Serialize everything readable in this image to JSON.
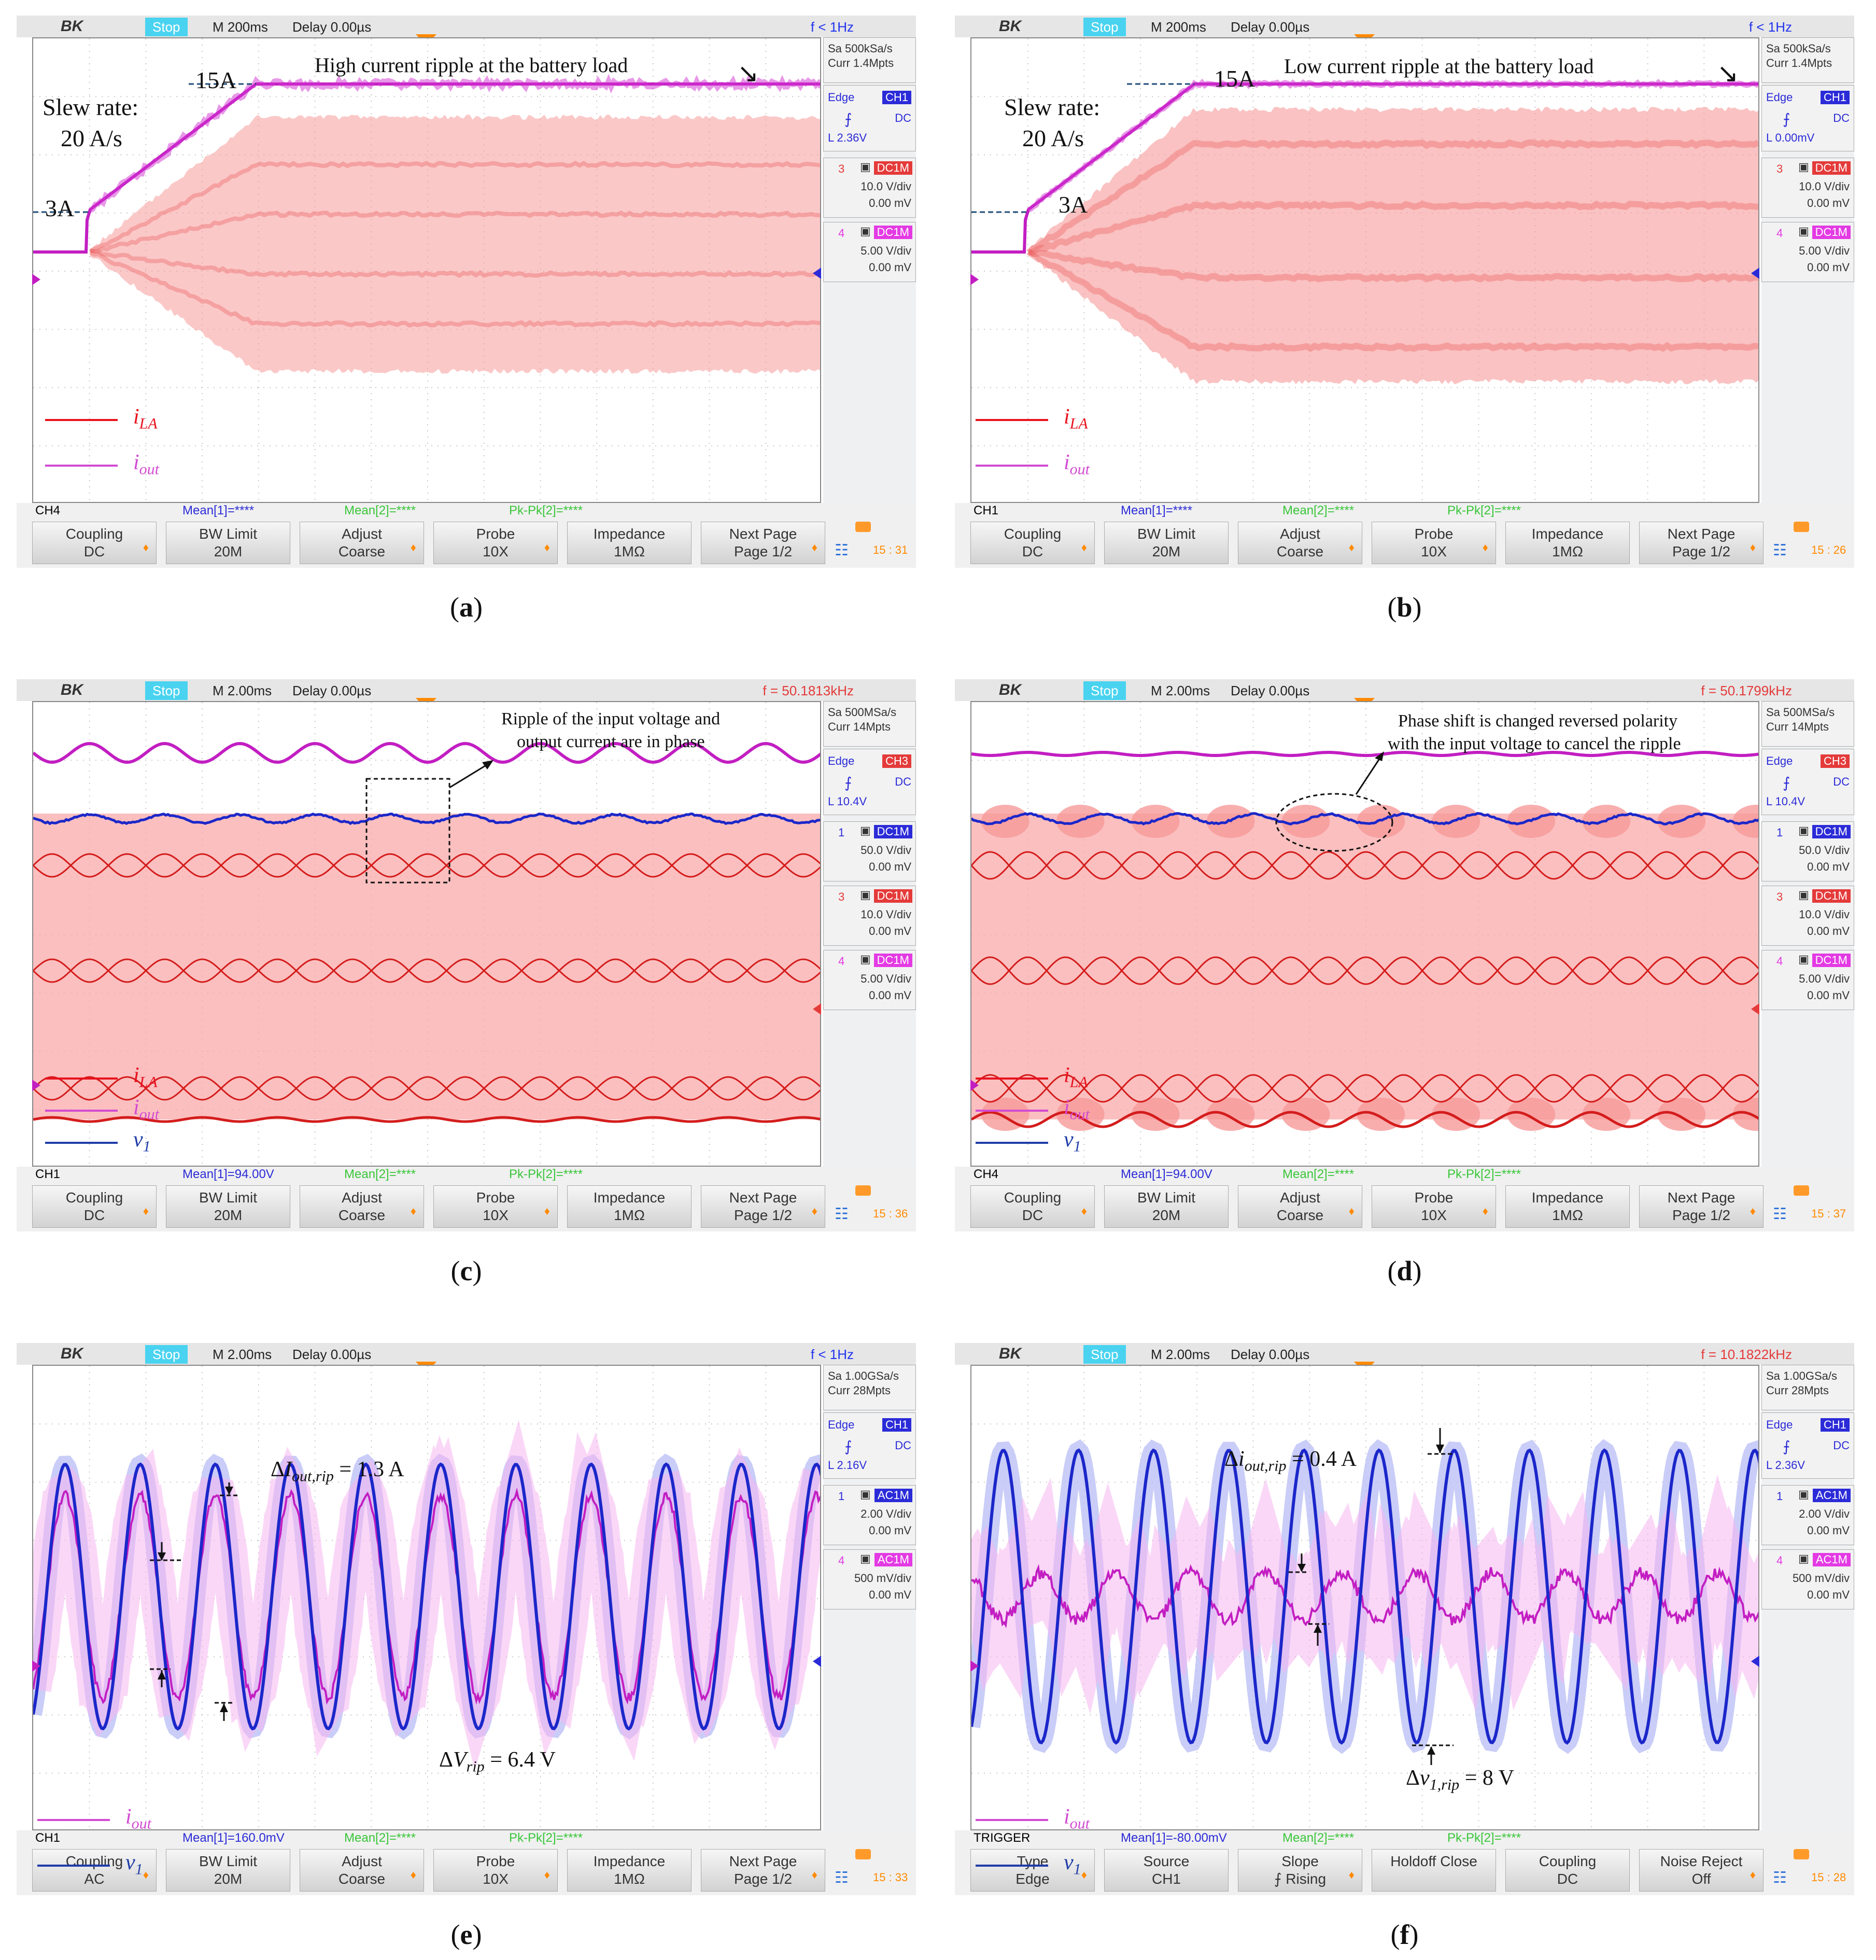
{
  "panels": [
    {
      "id": "a",
      "caption": "a",
      "topbar": {
        "brand": "BK",
        "state": "Stop",
        "timebase": "M 200ms",
        "delay": "Delay 0.00µs",
        "freq": "f < 1Hz",
        "freq_color": "blue"
      },
      "side": {
        "sa": "Sa 500kSa/s",
        "curr": "Curr 1.4Mpts",
        "trig_label": "Edge",
        "trig_ch": "CH1",
        "trig_coupling": "DC",
        "trig_level": "L  2.36V",
        "channels": [
          {
            "num": "3",
            "mode": "DC1M",
            "color": "#e43a3a",
            "vdiv": "10.0 V/div",
            "offset": "0.00 mV"
          },
          {
            "num": "4",
            "mode": "DC1M",
            "color": "#e33ae3",
            "vdiv": "5.00 V/div",
            "offset": "0.00 mV"
          }
        ]
      },
      "bottom": {
        "label": "CH4",
        "mean1": "Mean[1]=****",
        "mean2": "Mean[2]=****",
        "pkpk": "Pk-Pk[2]=****"
      },
      "softkeys": [
        [
          "Coupling",
          "DC"
        ],
        [
          "BW Limit",
          "20M"
        ],
        [
          "Adjust",
          "Coarse"
        ],
        [
          "Probe",
          "10X"
        ],
        [
          "Impedance",
          "1MΩ"
        ],
        [
          "Next Page",
          "Page 1/2"
        ]
      ],
      "clock": "15 : 31",
      "annotations": {
        "slew1": "Slew rate:",
        "slew2": "20 A/s",
        "low": "3A",
        "high": "15A",
        "note": "High current ripple at the battery load"
      },
      "legend": [
        {
          "sym": "i",
          "sub": "LA",
          "color": "#e8121e"
        },
        {
          "sym": "i",
          "sub": "out",
          "color": "#d24bd2"
        }
      ]
    },
    {
      "id": "b",
      "caption": "b",
      "topbar": {
        "brand": "BK",
        "state": "Stop",
        "timebase": "M 200ms",
        "delay": "Delay 0.00µs",
        "freq": "f < 1Hz",
        "freq_color": "blue"
      },
      "side": {
        "sa": "Sa 500kSa/s",
        "curr": "Curr 1.4Mpts",
        "trig_label": "Edge",
        "trig_ch": "CH1",
        "trig_coupling": "DC",
        "trig_level": "L  0.00mV",
        "channels": [
          {
            "num": "3",
            "mode": "DC1M",
            "color": "#e43a3a",
            "vdiv": "10.0 V/div",
            "offset": "0.00 mV"
          },
          {
            "num": "4",
            "mode": "DC1M",
            "color": "#e33ae3",
            "vdiv": "5.00 V/div",
            "offset": "0.00 mV"
          }
        ]
      },
      "bottom": {
        "label": "CH1",
        "mean1": "Mean[1]=****",
        "mean2": "Mean[2]=****",
        "pkpk": "Pk-Pk[2]=****"
      },
      "softkeys": [
        [
          "Coupling",
          "DC"
        ],
        [
          "BW Limit",
          "20M"
        ],
        [
          "Adjust",
          "Coarse"
        ],
        [
          "Probe",
          "10X"
        ],
        [
          "Impedance",
          "1MΩ"
        ],
        [
          "Next Page",
          "Page 1/2"
        ]
      ],
      "clock": "15 : 26",
      "annotations": {
        "slew1": "Slew rate:",
        "slew2": "20 A/s",
        "low": "3A",
        "high": "15A",
        "note": "Low current ripple at the battery load"
      },
      "legend": [
        {
          "sym": "i",
          "sub": "LA",
          "color": "#e8121e"
        },
        {
          "sym": "i",
          "sub": "out",
          "color": "#d24bd2"
        }
      ]
    },
    {
      "id": "c",
      "caption": "c",
      "topbar": {
        "brand": "BK",
        "state": "Stop",
        "timebase": "M 2.00ms",
        "delay": "Delay 0.00µs",
        "freq": "f = 50.1813kHz",
        "freq_color": "red"
      },
      "side": {
        "sa": "Sa 500MSa/s",
        "curr": "Curr 14Mpts",
        "trig_label": "Edge",
        "trig_ch": "CH3",
        "trig_coupling": "DC",
        "trig_level": "L  10.4V",
        "channels": [
          {
            "num": "1",
            "mode": "DC1M",
            "color": "#2b2bd8",
            "vdiv": "50.0 V/div",
            "offset": "0.00 mV"
          },
          {
            "num": "3",
            "mode": "DC1M",
            "color": "#e43a3a",
            "vdiv": "10.0 V/div",
            "offset": "0.00 mV"
          },
          {
            "num": "4",
            "mode": "DC1M",
            "color": "#e33ae3",
            "vdiv": "5.00 V/div",
            "offset": "0.00 mV"
          }
        ]
      },
      "bottom": {
        "label": "CH1",
        "mean1": "Mean[1]=94.00V",
        "mean2": "Mean[2]=****",
        "pkpk": "Pk-Pk[2]=****"
      },
      "softkeys": [
        [
          "Coupling",
          "DC"
        ],
        [
          "BW Limit",
          "20M"
        ],
        [
          "Adjust",
          "Coarse"
        ],
        [
          "Probe",
          "10X"
        ],
        [
          "Impedance",
          "1MΩ"
        ],
        [
          "Next Page",
          "Page 1/2"
        ]
      ],
      "clock": "15 : 36",
      "annotations": {
        "note1": "Ripple of the input voltage and",
        "note2": "output current are in phase"
      },
      "legend": [
        {
          "sym": "i",
          "sub": "LA",
          "color": "#e8121e"
        },
        {
          "sym": "i",
          "sub": "out",
          "color": "#d24bd2"
        },
        {
          "sym": "v",
          "sub": "1",
          "color": "#1f3da8"
        }
      ]
    },
    {
      "id": "d",
      "caption": "d",
      "topbar": {
        "brand": "BK",
        "state": "Stop",
        "timebase": "M 2.00ms",
        "delay": "Delay 0.00µs",
        "freq": "f = 50.1799kHz",
        "freq_color": "red"
      },
      "side": {
        "sa": "Sa 500MSa/s",
        "curr": "Curr 14Mpts",
        "trig_label": "Edge",
        "trig_ch": "CH3",
        "trig_coupling": "DC",
        "trig_level": "L  10.4V",
        "channels": [
          {
            "num": "1",
            "mode": "DC1M",
            "color": "#2b2bd8",
            "vdiv": "50.0 V/div",
            "offset": "0.00 mV"
          },
          {
            "num": "3",
            "mode": "DC1M",
            "color": "#e43a3a",
            "vdiv": "10.0 V/div",
            "offset": "0.00 mV"
          },
          {
            "num": "4",
            "mode": "DC1M",
            "color": "#e33ae3",
            "vdiv": "5.00 V/div",
            "offset": "0.00 mV"
          }
        ]
      },
      "bottom": {
        "label": "CH4",
        "mean1": "Mean[1]=94.00V",
        "mean2": "Mean[2]=****",
        "pkpk": "Pk-Pk[2]=****"
      },
      "softkeys": [
        [
          "Coupling",
          "DC"
        ],
        [
          "BW Limit",
          "20M"
        ],
        [
          "Adjust",
          "Coarse"
        ],
        [
          "Probe",
          "10X"
        ],
        [
          "Impedance",
          "1MΩ"
        ],
        [
          "Next Page",
          "Page 1/2"
        ]
      ],
      "clock": "15 : 37",
      "annotations": {
        "note1": "Phase shift is changed reversed polarity",
        "note2": "with the input voltage to cancel the ripple"
      },
      "legend": [
        {
          "sym": "i",
          "sub": "LA",
          "color": "#e8121e"
        },
        {
          "sym": "i",
          "sub": "out",
          "color": "#d24bd2"
        },
        {
          "sym": "v",
          "sub": "1",
          "color": "#1f3da8"
        }
      ]
    },
    {
      "id": "e",
      "caption": "e",
      "topbar": {
        "brand": "BK",
        "state": "Stop",
        "timebase": "M 2.00ms",
        "delay": "Delay 0.00µs",
        "freq": "f < 1Hz",
        "freq_color": "blue"
      },
      "side": {
        "sa": "Sa 1.00GSa/s",
        "curr": "Curr 28Mpts",
        "trig_label": "Edge",
        "trig_ch": "CH1",
        "trig_coupling": "DC",
        "trig_level": "L  2.16V",
        "channels": [
          {
            "num": "1",
            "mode": "AC1M",
            "color": "#2b2bd8",
            "vdiv": "2.00 V/div",
            "offset": "0.00 mV"
          },
          {
            "num": "4",
            "mode": "AC1M",
            "color": "#e33ae3",
            "vdiv": "500 mV/div",
            "offset": "0.00 mV"
          }
        ]
      },
      "bottom": {
        "label": "CH1",
        "mean1": "Mean[1]=160.0mV",
        "mean2": "Mean[2]=****",
        "pkpk": "Pk-Pk[2]=****"
      },
      "softkeys": [
        [
          "Coupling",
          "AC"
        ],
        [
          "BW Limit",
          "20M"
        ],
        [
          "Adjust",
          "Coarse"
        ],
        [
          "Probe",
          "10X"
        ],
        [
          "Impedance",
          "1MΩ"
        ],
        [
          "Next Page",
          "Page 1/2"
        ]
      ],
      "clock": "15 : 33",
      "annotations": {
        "di_pre": "Δ",
        "di_sym": "I",
        "di_sub": "out,rip",
        "di_val": " = 1.3 A",
        "dv_pre": "Δ",
        "dv_sym": "V",
        "dv_sub": "rip",
        "dv_val": " = 6.4 V"
      },
      "legend": [
        {
          "sym": "i",
          "sub": "out",
          "color": "#d24bd2"
        },
        {
          "sym": "v",
          "sub": "1",
          "color": "#1f3da8"
        }
      ]
    },
    {
      "id": "f",
      "caption": "f",
      "topbar": {
        "brand": "BK",
        "state": "Stop",
        "timebase": "M 2.00ms",
        "delay": "Delay 0.00µs",
        "freq": "f = 10.1822kHz",
        "freq_color": "red"
      },
      "side": {
        "sa": "Sa 1.00GSa/s",
        "curr": "Curr 28Mpts",
        "trig_label": "Edge",
        "trig_ch": "CH1",
        "trig_coupling": "DC",
        "trig_level": "L  2.36V",
        "channels": [
          {
            "num": "1",
            "mode": "AC1M",
            "color": "#2b2bd8",
            "vdiv": "2.00 V/div",
            "offset": "0.00 mV"
          },
          {
            "num": "4",
            "mode": "AC1M",
            "color": "#e33ae3",
            "vdiv": "500 mV/div",
            "offset": "0.00 mV"
          }
        ]
      },
      "bottom": {
        "label": "TRIGGER",
        "mean1": "Mean[1]=-80.00mV",
        "mean2": "Mean[2]=****",
        "pkpk": "Pk-Pk[2]=****"
      },
      "softkeys": [
        [
          "Type",
          "Edge"
        ],
        [
          "Source",
          "CH1"
        ],
        [
          "Slope",
          "⨍ Rising"
        ],
        [
          "Holdoff Close",
          ""
        ],
        [
          "Coupling",
          "DC"
        ],
        [
          "Noise Reject",
          "Off"
        ]
      ],
      "clock": "15 : 28",
      "annotations": {
        "di_pre": "Δ",
        "di_sym": "i",
        "di_sub": "out,rip",
        "di_val": " = 0.4 A",
        "dv_pre": "Δ",
        "dv_sym": "v",
        "dv_sub": "1,rip",
        "dv_val": " = 8 V"
      },
      "legend": [
        {
          "sym": "i",
          "sub": "out",
          "color": "#d24bd2"
        },
        {
          "sym": "v",
          "sub": "1",
          "color": "#1f3da8"
        }
      ]
    }
  ]
}
